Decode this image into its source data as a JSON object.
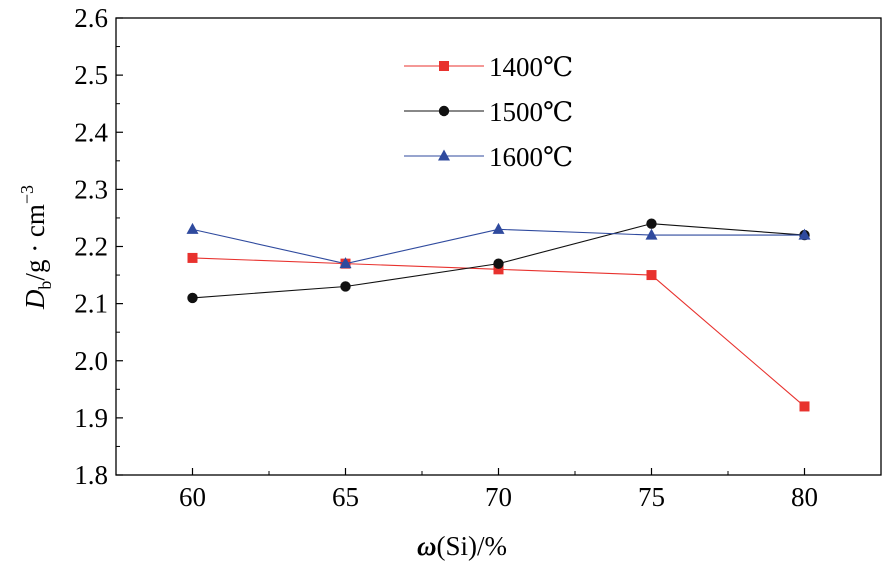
{
  "chart_data": {
    "type": "line",
    "x": [
      60,
      65,
      70,
      75,
      80
    ],
    "xlabel_parts": {
      "symbol": "ω",
      "rest": "(Si)/%"
    },
    "ylabel_parts": {
      "D": "D",
      "sub": "b",
      "mid": "/g · cm",
      "sup": "−3"
    },
    "xlim": [
      57.5,
      82.5
    ],
    "ylim": [
      1.8,
      2.6
    ],
    "xticks": [
      "60",
      "65",
      "70",
      "75",
      "80"
    ],
    "yticks": [
      "1.8",
      "1.9",
      "2.0",
      "2.1",
      "2.2",
      "2.3",
      "2.4",
      "2.5",
      "2.6"
    ],
    "grid": false,
    "legend_position": "top-center",
    "series": [
      {
        "name": "1400℃",
        "color": "#e8322e",
        "marker": "square",
        "values": [
          2.18,
          2.17,
          2.16,
          2.15,
          1.92
        ]
      },
      {
        "name": "1500℃",
        "color": "#111111",
        "marker": "circle",
        "values": [
          2.11,
          2.13,
          2.17,
          2.24,
          2.22
        ]
      },
      {
        "name": "1600℃",
        "color": "#2f4a9e",
        "marker": "triangle",
        "values": [
          2.23,
          2.17,
          2.23,
          2.22,
          2.22
        ]
      }
    ]
  }
}
